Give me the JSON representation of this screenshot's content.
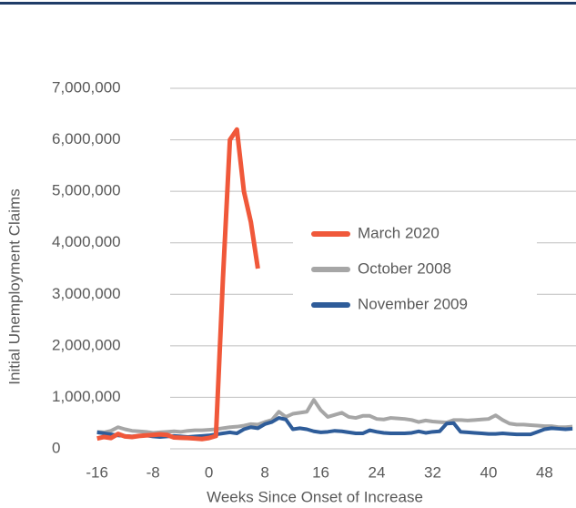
{
  "chart_data": {
    "type": "line",
    "xlabel": "Weeks Since Onset of Increase",
    "ylabel": "Initial Unemployment Claims",
    "xlim": [
      -17,
      52.5
    ],
    "ylim": [
      0,
      7000000
    ],
    "xticks": [
      -16,
      -8,
      0,
      8,
      16,
      24,
      32,
      40,
      48
    ],
    "yticks": [
      {
        "value": 0,
        "label": "0"
      },
      {
        "value": 1000000,
        "label": "1,000,000"
      },
      {
        "value": 2000000,
        "label": "2,000,000"
      },
      {
        "value": 3000000,
        "label": "3,000,000"
      },
      {
        "value": 4000000,
        "label": "4,000,000"
      },
      {
        "value": 5000000,
        "label": "5,000,000"
      },
      {
        "value": 6000000,
        "label": "6,000,000"
      },
      {
        "value": 7000000,
        "label": "7,000,000"
      }
    ],
    "grid": true,
    "series": [
      {
        "name": "October 2008",
        "color": "#a6a6a6",
        "x": [
          -16,
          -15,
          -14,
          -13,
          -12,
          -11,
          -10,
          -9,
          -8,
          -7,
          -6,
          -5,
          -4,
          -3,
          -2,
          -1,
          0,
          1,
          2,
          3,
          4,
          5,
          6,
          7,
          8,
          9,
          10,
          11,
          12,
          13,
          14,
          15,
          16,
          17,
          18,
          19,
          20,
          21,
          22,
          23,
          24,
          25,
          26,
          27,
          28,
          29,
          30,
          31,
          32,
          33,
          34,
          35,
          36,
          37,
          38,
          39,
          40,
          41,
          42,
          43,
          44,
          45,
          46,
          47,
          48,
          49,
          50,
          51,
          52
        ],
        "values": [
          330000,
          320000,
          350000,
          420000,
          380000,
          350000,
          340000,
          330000,
          310000,
          320000,
          330000,
          340000,
          330000,
          350000,
          360000,
          360000,
          370000,
          380000,
          400000,
          420000,
          430000,
          450000,
          480000,
          470000,
          520000,
          560000,
          720000,
          620000,
          680000,
          700000,
          720000,
          950000,
          750000,
          620000,
          660000,
          700000,
          620000,
          600000,
          640000,
          640000,
          580000,
          570000,
          600000,
          590000,
          580000,
          560000,
          520000,
          550000,
          530000,
          520000,
          510000,
          560000,
          560000,
          550000,
          560000,
          570000,
          580000,
          650000,
          560000,
          490000,
          470000,
          470000,
          460000,
          450000,
          440000,
          440000,
          420000,
          420000,
          430000
        ]
      },
      {
        "name": "November 2009",
        "color": "#2e5c99",
        "x": [
          -16,
          -15,
          -14,
          -13,
          -12,
          -11,
          -10,
          -9,
          -8,
          -7,
          -6,
          -5,
          -4,
          -3,
          -2,
          -1,
          0,
          1,
          2,
          3,
          4,
          5,
          6,
          7,
          8,
          9,
          10,
          11,
          12,
          13,
          14,
          15,
          16,
          17,
          18,
          19,
          20,
          21,
          22,
          23,
          24,
          25,
          26,
          27,
          28,
          29,
          30,
          31,
          32,
          33,
          34,
          35,
          36,
          37,
          38,
          39,
          40,
          41,
          42,
          43,
          44,
          45,
          46,
          47,
          48,
          49,
          50,
          51,
          52
        ],
        "values": [
          320000,
          300000,
          280000,
          260000,
          250000,
          240000,
          250000,
          260000,
          240000,
          230000,
          240000,
          250000,
          240000,
          230000,
          240000,
          250000,
          260000,
          280000,
          300000,
          320000,
          300000,
          380000,
          420000,
          400000,
          480000,
          520000,
          600000,
          570000,
          380000,
          400000,
          380000,
          340000,
          320000,
          330000,
          350000,
          340000,
          320000,
          300000,
          300000,
          360000,
          330000,
          310000,
          300000,
          300000,
          300000,
          310000,
          340000,
          310000,
          330000,
          340000,
          490000,
          500000,
          330000,
          320000,
          310000,
          300000,
          290000,
          290000,
          300000,
          290000,
          280000,
          280000,
          280000,
          330000,
          380000,
          400000,
          390000,
          380000,
          390000
        ]
      },
      {
        "name": "March 2020",
        "color": "#f0583a",
        "x": [
          -16,
          -15,
          -14,
          -13,
          -12,
          -11,
          -10,
          -9,
          -8,
          -7,
          -6,
          -5,
          -4,
          -3,
          -2,
          -1,
          0,
          1,
          2,
          3,
          4,
          5,
          6,
          7
        ],
        "values": [
          200000,
          230000,
          210000,
          290000,
          240000,
          230000,
          250000,
          260000,
          270000,
          280000,
          270000,
          220000,
          215000,
          210000,
          200000,
          190000,
          210000,
          250000,
          3300000,
          6000000,
          6200000,
          5000000,
          4400000,
          3500000
        ]
      }
    ],
    "legend_order": [
      "March 2020",
      "October 2008",
      "November 2009"
    ]
  }
}
